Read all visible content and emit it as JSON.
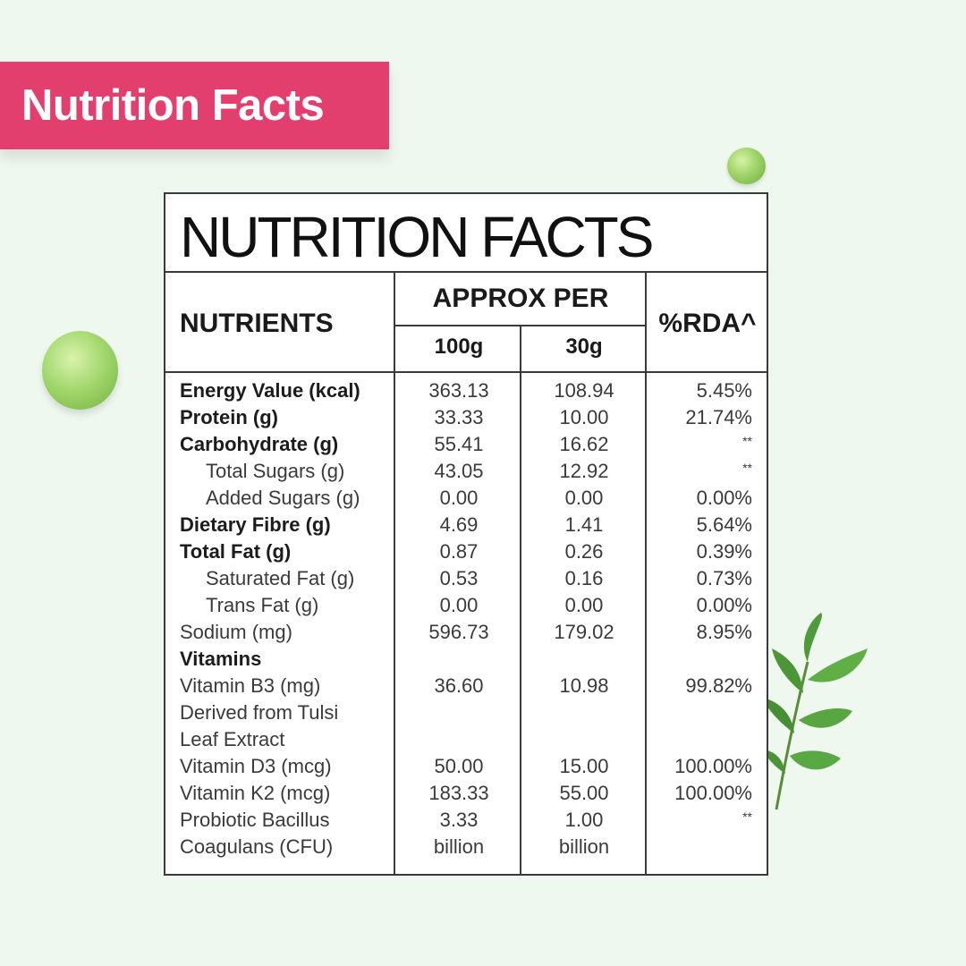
{
  "banner": {
    "title": "Nutrition Facts"
  },
  "table": {
    "title": "NUTRITION FACTS",
    "headers": {
      "nutrients": "NUTRIENTS",
      "approx_per": "APPROX PER",
      "col_100g": "100g",
      "col_30g": "30g",
      "rda": "%RDA^"
    },
    "rows": [
      {
        "label": "Energy Value (kcal)",
        "v100": "363.13",
        "v30": "108.94",
        "rda": "5.45%"
      },
      {
        "label": "Protein (g)",
        "v100": "33.33",
        "v30": "10.00",
        "rda": "21.74%"
      },
      {
        "label": "Carbohydrate (g)",
        "v100": "55.41",
        "v30": "16.62",
        "rda": "**"
      },
      {
        "label": "Total Sugars (g)",
        "v100": "43.05",
        "v30": "12.92",
        "rda": "**"
      },
      {
        "label": "Added Sugars (g)",
        "v100": "0.00",
        "v30": "0.00",
        "rda": "0.00%"
      },
      {
        "label": "Dietary Fibre (g)",
        "v100": "4.69",
        "v30": "1.41",
        "rda": "5.64%"
      },
      {
        "label": "Total Fat (g)",
        "v100": "0.87",
        "v30": "0.26",
        "rda": "0.39%"
      },
      {
        "label": "Saturated Fat (g)",
        "v100": "0.53",
        "v30": "0.16",
        "rda": "0.73%"
      },
      {
        "label": "Trans Fat (g)",
        "v100": "0.00",
        "v30": "0.00",
        "rda": "0.00%"
      },
      {
        "label": "Sodium (mg)",
        "v100": "596.73",
        "v30": "179.02",
        "rda": "8.95%"
      },
      {
        "label": "Vitamins",
        "v100": "",
        "v30": "",
        "rda": ""
      },
      {
        "label": "Vitamin B3 (mg)",
        "v100": "36.60",
        "v30": "10.98",
        "rda": "99.82%"
      },
      {
        "label": "Derived from Tulsi",
        "v100": "",
        "v30": "",
        "rda": ""
      },
      {
        "label": "Leaf Extract",
        "v100": "",
        "v30": "",
        "rda": ""
      },
      {
        "label": "Vitamin D3 (mcg)",
        "v100": "50.00",
        "v30": "15.00",
        "rda": "100.00%"
      },
      {
        "label": "Vitamin K2 (mcg)",
        "v100": "183.33",
        "v30": "55.00",
        "rda": "100.00%"
      },
      {
        "label": "Probiotic Bacillus",
        "v100": "3.33",
        "v30": "1.00",
        "rda": "**"
      },
      {
        "label": "Coagulans (CFU)",
        "v100": "billion",
        "v30": "billion",
        "rda": ""
      }
    ]
  },
  "decor": {
    "icons": [
      "pea-icon",
      "pea-icon",
      "tulsi-leaves-icon"
    ]
  }
}
